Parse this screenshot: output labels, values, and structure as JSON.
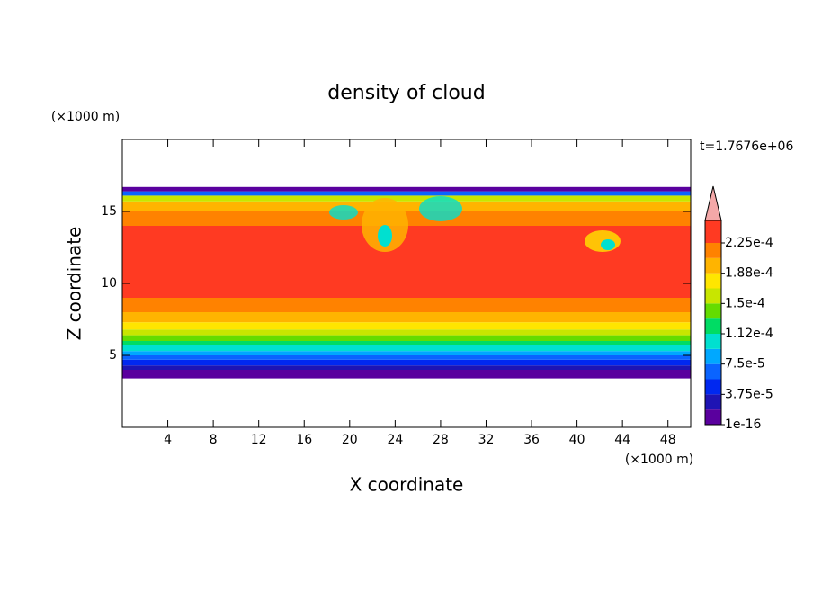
{
  "chart_data": {
    "type": "contour",
    "title": "density of cloud",
    "x_label": "X coordinate",
    "y_label": "Z coordinate",
    "x_unit": "(×1000 m)",
    "y_unit": "(×1000 m)",
    "time_label": "t=1.7676e+06",
    "xlim": [
      0,
      50
    ],
    "ylim": [
      0,
      20
    ],
    "xticks": [
      4,
      8,
      12,
      16,
      20,
      24,
      28,
      32,
      36,
      40,
      44,
      48
    ],
    "yticks": [
      5,
      10,
      15
    ],
    "levels": [
      {
        "value": 1e-16,
        "label": "1e-16"
      },
      1.875e-05,
      {
        "value": 3.75e-05,
        "label": "3.75e-5"
      },
      5.625e-05,
      {
        "value": 7.5e-05,
        "label": "7.5e-5"
      },
      9.375e-05,
      {
        "value": 0.0001125,
        "label": "1.12e-4"
      },
      0.00013125,
      {
        "value": 0.00015,
        "label": "1.5e-4"
      },
      0.00016875,
      {
        "value": 0.0001875,
        "label": "1.88e-4"
      },
      0.00020625,
      {
        "value": 0.000225,
        "label": "2.25e-4"
      }
    ],
    "colors": [
      "#5a009e",
      "#1e14b4",
      "#0028f0",
      "#0a64ff",
      "#00a8ff",
      "#00e0d0",
      "#00dc64",
      "#64dc00",
      "#c8e600",
      "#ffe600",
      "#ffb400",
      "#ff8200",
      "#ff3a22"
    ],
    "over_color": "#f4a8a8",
    "profile": {
      "z_edges": [
        3.4,
        4.0,
        4.3,
        4.7,
        5.0,
        5.3,
        5.7,
        6.0,
        6.4,
        6.8,
        7.3,
        8.0,
        9.0,
        14.0,
        15.0,
        15.7,
        16.1,
        16.4,
        16.7
      ],
      "values": [
        1e-05,
        3e-05,
        5e-05,
        7e-05,
        9e-05,
        0.000105,
        0.000125,
        0.00014,
        0.00016,
        0.00018,
        0.0002,
        0.00022,
        0.000235,
        0.00022,
        0.0002,
        0.00016,
        7e-05,
        1e-05
      ]
    }
  }
}
